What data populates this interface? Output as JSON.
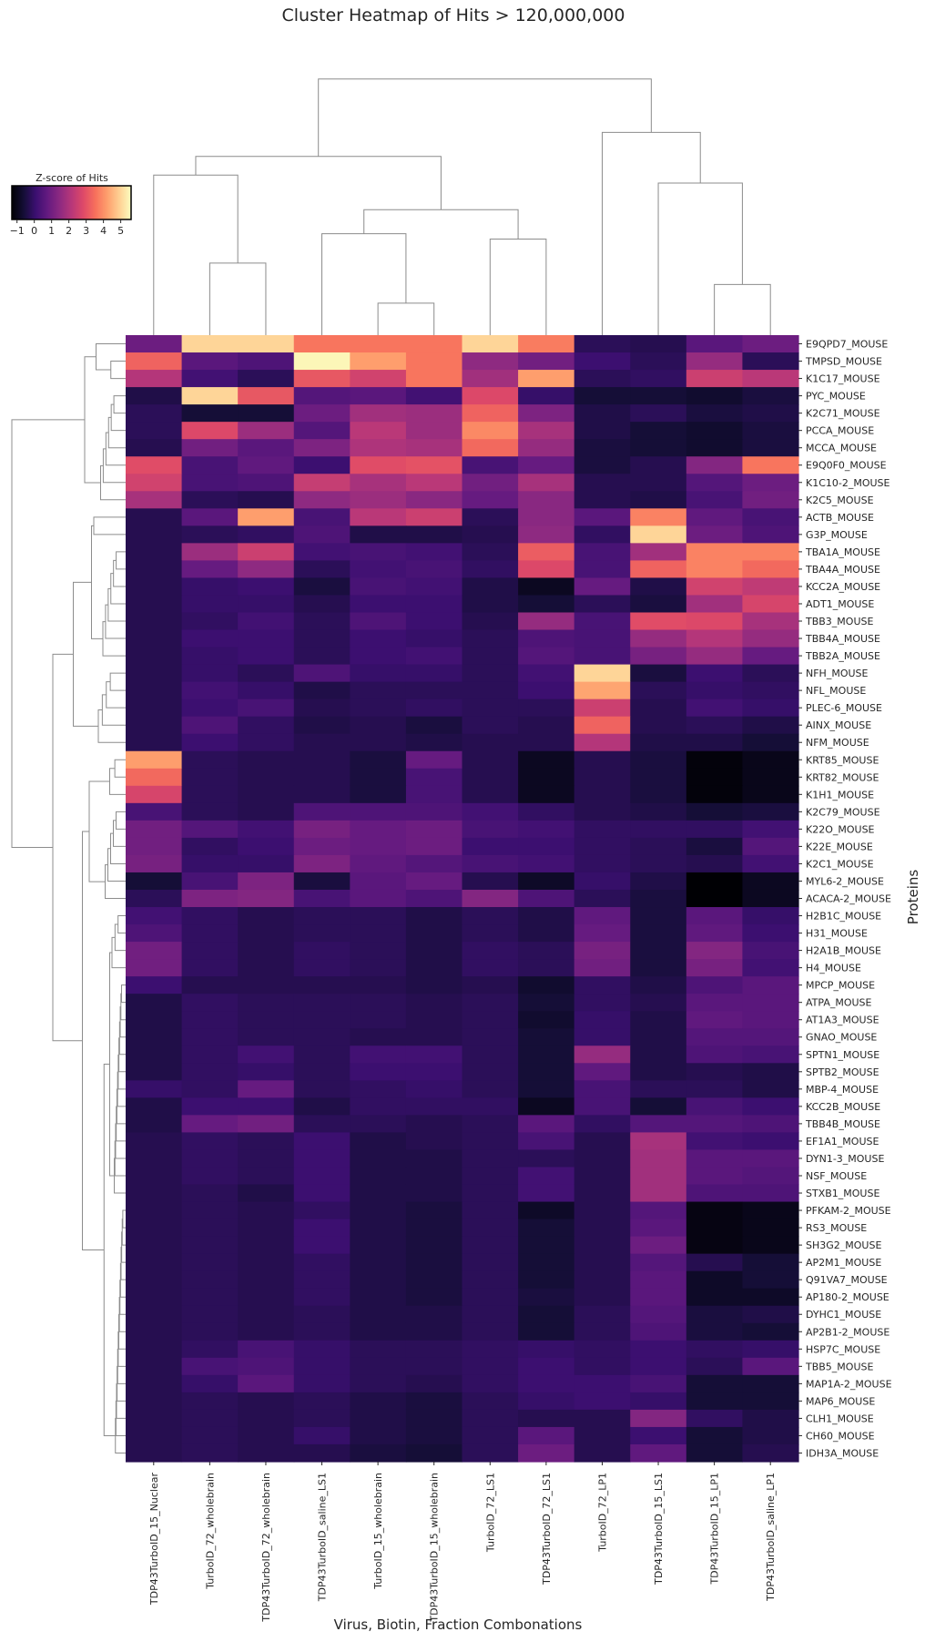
{
  "chart_data": {
    "type": "heatmap",
    "title": "Cluster Heatmap of Hits > 120,000,000",
    "xlabel": "Virus, Biotin, Fraction Combonations",
    "ylabel": "Proteins",
    "colorbar": {
      "label": "Z-score of Hits",
      "range": [
        -1.3,
        5.6
      ],
      "ticks": [
        "−1",
        "0",
        "1",
        "2",
        "3",
        "4",
        "5"
      ],
      "tick_values": [
        -1,
        0,
        1,
        2,
        3,
        4,
        5
      ],
      "colormap": "magma"
    },
    "columns": [
      "TDP43TurboID_15_Nuclear",
      "TurboID_72_wholebrain",
      "TDP43TurboID_72_wholebrain",
      "TDP43TurboID_saline_LS1",
      "TurboID_15_wholebrain",
      "TDP43TurboID_15_wholebrain",
      "TurboID_72_LS1",
      "TDP43TurboID_72_LS1",
      "TurboID_72_LP1",
      "TDP43TurboID_15_LS1",
      "TDP43TurboID_15_LP1",
      "TDP43TurboID_saline_LP1"
    ],
    "rows": [
      "E9QPD7_MOUSE",
      "TMPSD_MOUSE",
      "K1C17_MOUSE",
      "PYC_MOUSE",
      "K2C71_MOUSE",
      "PCCA_MOUSE",
      "MCCA_MOUSE",
      "E9Q0F0_MOUSE",
      "K1C10-2_MOUSE",
      "K2C5_MOUSE",
      "ACTB_MOUSE",
      "G3P_MOUSE",
      "TBA1A_MOUSE",
      "TBA4A_MOUSE",
      "KCC2A_MOUSE",
      "ADT1_MOUSE",
      "TBB3_MOUSE",
      "TBB4A_MOUSE",
      "TBB2A_MOUSE",
      "NFH_MOUSE",
      "NFL_MOUSE",
      "PLEC-6_MOUSE",
      "AINX_MOUSE",
      "NFM_MOUSE",
      "KRT85_MOUSE",
      "KRT82_MOUSE",
      "K1H1_MOUSE",
      "K2C79_MOUSE",
      "K22O_MOUSE",
      "K22E_MOUSE",
      "K2C1_MOUSE",
      "MYL6-2_MOUSE",
      "ACACA-2_MOUSE",
      "H2B1C_MOUSE",
      "H31_MOUSE",
      "H2A1B_MOUSE",
      "H4_MOUSE",
      "MPCP_MOUSE",
      "ATPA_MOUSE",
      "AT1A3_MOUSE",
      "GNAO_MOUSE",
      "SPTN1_MOUSE",
      "SPTB2_MOUSE",
      "MBP-4_MOUSE",
      "KCC2B_MOUSE",
      "TBB4B_MOUSE",
      "EF1A1_MOUSE",
      "DYN1-3_MOUSE",
      "NSF_MOUSE",
      "STXB1_MOUSE",
      "PFKAM-2_MOUSE",
      "RS3_MOUSE",
      "SH3G2_MOUSE",
      "AP2M1_MOUSE",
      "Q91VA7_MOUSE",
      "AP180-2_MOUSE",
      "DYHC1_MOUSE",
      "AP2B1-2_MOUSE",
      "HSP7C_MOUSE",
      "TBB5_MOUSE",
      "MAP1A-2_MOUSE",
      "MAP6_MOUSE",
      "CLH1_MOUSE",
      "CH60_MOUSE",
      "IDH3A_MOUSE"
    ],
    "values": [
      [
        0.9,
        5.0,
        5.0,
        3.6,
        3.6,
        3.6,
        5.0,
        3.7,
        -0.2,
        -0.3,
        0.6,
        0.9
      ],
      [
        3.3,
        0.6,
        0.4,
        5.5,
        4.2,
        3.6,
        1.5,
        1.0,
        0.1,
        -0.2,
        1.6,
        -0.2
      ],
      [
        2.1,
        0.2,
        -0.2,
        3.1,
        2.6,
        3.6,
        1.8,
        4.2,
        -0.2,
        -0.1,
        2.5,
        2.2
      ],
      [
        -0.4,
        5.0,
        3.1,
        0.5,
        0.6,
        0.2,
        2.8,
        0.0,
        -0.6,
        -0.6,
        -0.7,
        -0.5
      ],
      [
        -0.2,
        -0.6,
        -0.6,
        0.9,
        1.8,
        1.7,
        3.3,
        1.2,
        -0.4,
        -0.2,
        -0.5,
        -0.4
      ],
      [
        -0.2,
        2.8,
        1.7,
        0.5,
        2.2,
        1.7,
        3.9,
        1.9,
        -0.4,
        -0.6,
        -0.7,
        -0.5
      ],
      [
        -0.3,
        1.0,
        0.6,
        1.2,
        2.0,
        1.9,
        3.4,
        1.6,
        -0.5,
        -0.6,
        -0.7,
        -0.5
      ],
      [
        2.9,
        0.3,
        0.7,
        0.1,
        2.9,
        3.0,
        0.3,
        0.8,
        -0.5,
        -0.3,
        1.3,
        3.6
      ],
      [
        2.6,
        0.3,
        0.4,
        2.4,
        1.9,
        2.2,
        1.0,
        1.9,
        -0.3,
        -0.3,
        0.5,
        0.9
      ],
      [
        1.9,
        -0.2,
        -0.3,
        1.5,
        1.7,
        1.4,
        0.8,
        1.4,
        -0.3,
        -0.4,
        0.3,
        1.0
      ],
      [
        -0.3,
        0.6,
        4.2,
        0.3,
        2.2,
        2.5,
        -0.2,
        1.4,
        0.6,
        3.8,
        0.7,
        0.3
      ],
      [
        -0.3,
        -0.2,
        -0.1,
        0.4,
        -0.4,
        -0.4,
        -0.3,
        1.5,
        -0.1,
        5.0,
        0.9,
        0.4
      ],
      [
        -0.3,
        1.7,
        2.5,
        0.2,
        0.3,
        0.2,
        -0.2,
        3.2,
        0.3,
        1.8,
        3.8,
        3.8
      ],
      [
        -0.3,
        0.8,
        1.5,
        -0.2,
        0.2,
        0.3,
        -0.1,
        2.8,
        0.3,
        3.3,
        3.8,
        3.4
      ],
      [
        -0.3,
        0.0,
        0.1,
        -0.5,
        0.3,
        0.2,
        -0.4,
        -0.9,
        0.8,
        -0.4,
        2.6,
        2.3
      ],
      [
        -0.3,
        0.0,
        0.0,
        -0.3,
        0.1,
        0.1,
        -0.4,
        -0.6,
        -0.2,
        -0.5,
        1.8,
        2.7
      ],
      [
        -0.3,
        -0.1,
        0.2,
        -0.2,
        0.4,
        0.1,
        -0.3,
        1.6,
        0.3,
        2.9,
        2.8,
        1.9
      ],
      [
        -0.3,
        0.1,
        0.1,
        -0.2,
        0.1,
        0.0,
        -0.2,
        0.4,
        0.3,
        1.6,
        2.1,
        1.6
      ],
      [
        -0.3,
        0.0,
        0.1,
        -0.2,
        0.1,
        0.2,
        -0.2,
        0.5,
        0.3,
        1.1,
        1.6,
        0.8
      ],
      [
        -0.3,
        0.0,
        -0.2,
        0.4,
        0.0,
        0.0,
        -0.2,
        0.2,
        5.0,
        -0.5,
        0.1,
        -0.2
      ],
      [
        -0.3,
        0.2,
        0.0,
        -0.4,
        -0.2,
        -0.2,
        -0.2,
        0.1,
        4.3,
        -0.2,
        0.0,
        -0.1
      ],
      [
        -0.3,
        0.1,
        0.3,
        -0.3,
        -0.2,
        -0.1,
        -0.2,
        -0.2,
        2.5,
        -0.3,
        0.2,
        0.0
      ],
      [
        -0.3,
        0.4,
        -0.1,
        -0.4,
        -0.3,
        -0.5,
        -0.2,
        -0.3,
        3.3,
        -0.3,
        -0.2,
        -0.4
      ],
      [
        -0.3,
        0.1,
        -0.1,
        -0.3,
        -0.3,
        -0.4,
        -0.3,
        -0.3,
        2.1,
        -0.4,
        -0.4,
        -0.6
      ],
      [
        4.2,
        -0.2,
        -0.3,
        -0.3,
        -0.5,
        0.8,
        -0.3,
        -0.9,
        -0.3,
        -0.5,
        -1.2,
        -1.0
      ],
      [
        3.4,
        -0.2,
        -0.3,
        -0.3,
        -0.5,
        0.3,
        -0.3,
        -0.9,
        -0.3,
        -0.5,
        -1.2,
        -1.0
      ],
      [
        2.7,
        -0.2,
        -0.3,
        -0.3,
        -0.5,
        0.3,
        -0.3,
        -0.9,
        -0.3,
        -0.5,
        -1.2,
        -1.0
      ],
      [
        0.3,
        -0.2,
        -0.3,
        0.4,
        0.4,
        0.4,
        0.2,
        -0.1,
        -0.3,
        -0.4,
        -0.6,
        -0.5
      ],
      [
        1.0,
        0.5,
        0.2,
        1.1,
        0.8,
        0.9,
        0.3,
        0.2,
        -0.1,
        -0.1,
        -0.1,
        0.2
      ],
      [
        1.0,
        -0.1,
        0.1,
        0.9,
        0.8,
        0.9,
        0.1,
        0.1,
        -0.1,
        -0.2,
        -0.5,
        0.5
      ],
      [
        1.1,
        0.0,
        0.0,
        1.2,
        0.7,
        0.5,
        0.3,
        0.2,
        -0.1,
        -0.2,
        -0.3,
        0.2
      ],
      [
        -0.6,
        0.3,
        1.2,
        -0.5,
        0.6,
        0.8,
        -0.3,
        -0.8,
        0.0,
        -0.4,
        -1.3,
        -0.9
      ],
      [
        -0.2,
        1.2,
        1.3,
        0.3,
        0.6,
        0.4,
        1.3,
        0.4,
        -0.2,
        -0.5,
        -1.3,
        -0.9
      ],
      [
        0.2,
        -0.1,
        -0.3,
        -0.2,
        -0.2,
        -0.4,
        -0.2,
        -0.4,
        0.7,
        -0.5,
        0.6,
        0.0
      ],
      [
        0.4,
        -0.1,
        -0.3,
        -0.2,
        -0.2,
        -0.4,
        -0.2,
        -0.4,
        0.8,
        -0.5,
        0.7,
        0.1
      ],
      [
        1.0,
        -0.1,
        -0.3,
        -0.1,
        -0.2,
        -0.4,
        -0.1,
        -0.2,
        1.1,
        -0.5,
        1.3,
        0.3
      ],
      [
        1.0,
        -0.1,
        -0.3,
        -0.1,
        -0.2,
        -0.4,
        -0.1,
        -0.2,
        1.0,
        -0.5,
        1.1,
        0.2
      ],
      [
        0.1,
        -0.3,
        -0.3,
        -0.3,
        -0.3,
        -0.4,
        -0.3,
        -0.7,
        -0.1,
        -0.4,
        0.4,
        0.6
      ],
      [
        -0.4,
        -0.1,
        -0.2,
        -0.2,
        -0.2,
        -0.3,
        -0.2,
        -0.6,
        -0.1,
        -0.3,
        0.6,
        0.6
      ],
      [
        -0.4,
        -0.1,
        -0.2,
        -0.2,
        -0.2,
        -0.3,
        -0.2,
        -0.7,
        0.0,
        -0.4,
        0.7,
        0.6
      ],
      [
        -0.4,
        -0.1,
        -0.2,
        -0.2,
        -0.3,
        -0.3,
        -0.2,
        -0.6,
        0.0,
        -0.4,
        0.5,
        0.5
      ],
      [
        -0.4,
        -0.1,
        0.2,
        -0.2,
        0.2,
        0.2,
        -0.2,
        -0.6,
        1.6,
        -0.4,
        0.4,
        0.3
      ],
      [
        -0.4,
        -0.1,
        0.0,
        -0.2,
        0.1,
        0.1,
        -0.2,
        -0.6,
        0.7,
        -0.4,
        -0.3,
        -0.4
      ],
      [
        0.0,
        -0.1,
        0.8,
        -0.2,
        -0.1,
        0.0,
        -0.2,
        -0.6,
        0.3,
        -0.2,
        -0.2,
        -0.4
      ],
      [
        -0.4,
        0.1,
        0.1,
        -0.4,
        -0.1,
        -0.1,
        -0.1,
        -0.9,
        0.3,
        -0.6,
        0.3,
        0.1
      ],
      [
        -0.4,
        0.8,
        1.0,
        -0.2,
        -0.2,
        -0.3,
        -0.2,
        0.6,
        -0.1,
        0.5,
        0.5,
        0.4
      ],
      [
        -0.3,
        -0.1,
        -0.2,
        0.1,
        -0.4,
        -0.3,
        -0.2,
        0.3,
        -0.3,
        1.9,
        0.2,
        0.1
      ],
      [
        -0.3,
        -0.1,
        -0.2,
        0.1,
        -0.4,
        -0.4,
        -0.2,
        -0.2,
        -0.3,
        1.8,
        0.6,
        0.6
      ],
      [
        -0.3,
        -0.1,
        -0.2,
        0.1,
        -0.4,
        -0.4,
        -0.2,
        0.2,
        -0.3,
        1.8,
        0.6,
        0.5
      ],
      [
        -0.3,
        -0.2,
        -0.4,
        0.1,
        -0.4,
        -0.4,
        -0.2,
        0.2,
        -0.3,
        1.8,
        0.4,
        0.4
      ],
      [
        -0.3,
        -0.2,
        -0.3,
        -0.1,
        -0.4,
        -0.5,
        -0.2,
        -0.8,
        -0.3,
        0.5,
        -1.1,
        -1.0
      ],
      [
        -0.3,
        -0.2,
        -0.3,
        0.1,
        -0.4,
        -0.5,
        -0.2,
        -0.6,
        -0.3,
        0.6,
        -1.1,
        -1.0
      ],
      [
        -0.3,
        -0.2,
        -0.3,
        0.1,
        -0.4,
        -0.5,
        -0.2,
        -0.6,
        -0.3,
        0.9,
        -1.1,
        -1.0
      ],
      [
        -0.3,
        -0.2,
        -0.3,
        -0.1,
        -0.4,
        -0.5,
        -0.2,
        -0.6,
        -0.3,
        0.5,
        -0.3,
        -0.6
      ],
      [
        -0.3,
        -0.2,
        -0.3,
        -0.1,
        -0.4,
        -0.5,
        -0.2,
        -0.6,
        -0.3,
        0.6,
        -0.8,
        -0.6
      ],
      [
        -0.3,
        -0.2,
        -0.3,
        -0.1,
        -0.4,
        -0.5,
        -0.2,
        -0.5,
        -0.3,
        0.6,
        -0.8,
        -0.8
      ],
      [
        -0.3,
        -0.2,
        -0.3,
        -0.2,
        -0.4,
        -0.4,
        -0.2,
        -0.6,
        -0.2,
        0.5,
        -0.5,
        -0.4
      ],
      [
        -0.3,
        -0.2,
        -0.3,
        -0.2,
        -0.4,
        -0.4,
        -0.2,
        -0.6,
        -0.2,
        0.4,
        -0.5,
        -0.6
      ],
      [
        -0.3,
        -0.1,
        0.3,
        0.0,
        -0.2,
        -0.2,
        -0.1,
        0.0,
        -0.1,
        0.1,
        -0.1,
        0.0
      ],
      [
        -0.3,
        0.3,
        0.4,
        0.0,
        -0.2,
        -0.2,
        -0.1,
        0.1,
        -0.1,
        0.1,
        -0.2,
        0.6
      ],
      [
        -0.3,
        0.0,
        0.6,
        0.0,
        -0.2,
        -0.3,
        -0.1,
        0.1,
        0.1,
        0.3,
        -0.6,
        -0.6
      ],
      [
        -0.3,
        -0.2,
        -0.3,
        -0.2,
        -0.4,
        -0.5,
        -0.2,
        0.0,
        0.1,
        0.0,
        -0.6,
        -0.6
      ],
      [
        -0.3,
        -0.2,
        -0.3,
        -0.2,
        -0.4,
        -0.5,
        -0.2,
        -0.3,
        -0.3,
        1.3,
        -0.1,
        -0.4
      ],
      [
        -0.3,
        -0.2,
        -0.3,
        0.0,
        -0.4,
        -0.5,
        -0.2,
        0.6,
        -0.3,
        0.1,
        -0.6,
        -0.4
      ],
      [
        -0.3,
        -0.2,
        -0.3,
        -0.3,
        -0.5,
        -0.6,
        -0.2,
        0.9,
        -0.3,
        0.7,
        -0.6,
        -0.3
      ]
    ],
    "grid": false,
    "legend": "top-left colorbar"
  }
}
